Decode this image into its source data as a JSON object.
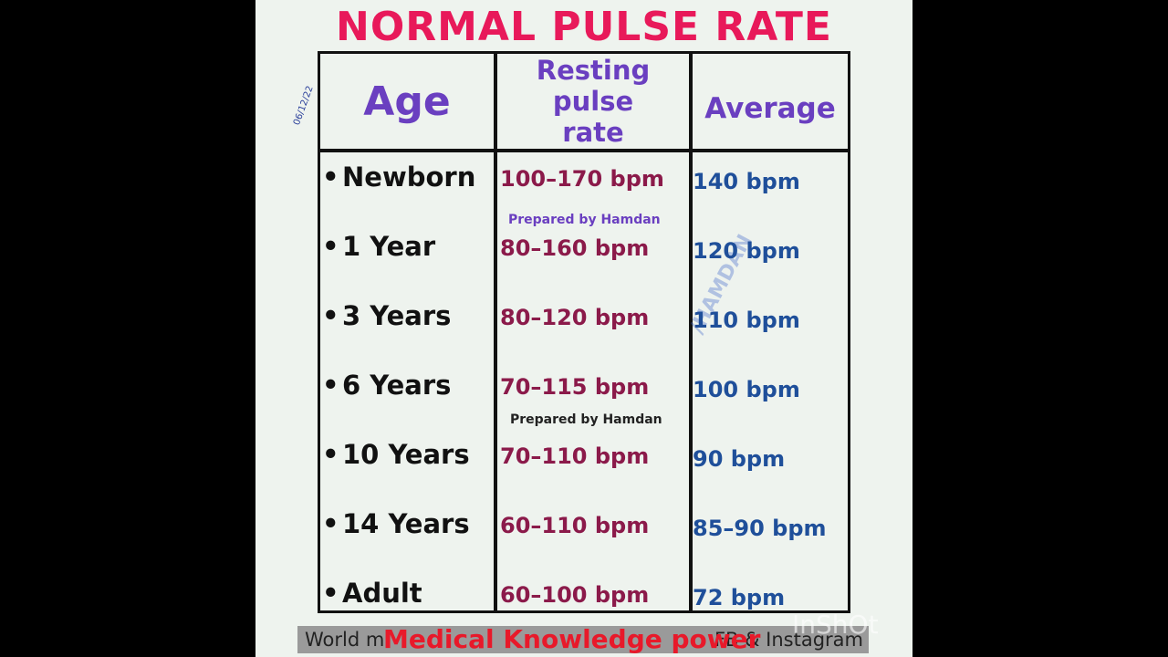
{
  "title": "NORMAL PULSE RATE",
  "date": "06/12/22",
  "table": {
    "headers": [
      "Age",
      "Resting pulse rate",
      "Average"
    ],
    "rows": [
      [
        "Newborn",
        "100–170 bpm",
        "140 bpm"
      ],
      [
        "1 Year",
        "80–160 bpm",
        "120 bpm"
      ],
      [
        "3 Years",
        "80–120 bpm",
        "110 bpm"
      ],
      [
        "6 Years",
        "70–115 bpm",
        "100 bpm"
      ],
      [
        "10 Years",
        "70–110 bpm",
        "90 bpm"
      ],
      [
        "14 Years",
        "60–110 bpm",
        "85–90 bpm"
      ],
      [
        "Adult",
        "60–100 bpm",
        "72 bpm"
      ]
    ]
  },
  "watermarks": [
    "Prepared by Hamdan",
    "Prepared by Hamdan",
    "/HAMDAN"
  ],
  "footer": {
    "left": "World m",
    "right": "FB & Instagram"
  },
  "overlay": "Medical Knowledge power",
  "app_watermark": "InShOt"
}
